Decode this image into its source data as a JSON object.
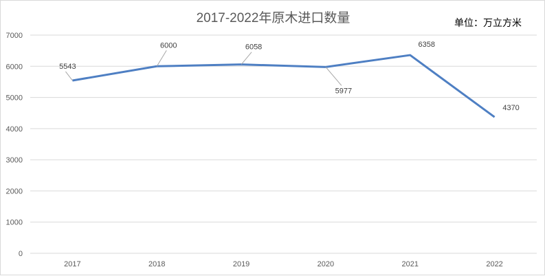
{
  "chart_data": {
    "type": "line",
    "title": "2017-2022年原木进口数量",
    "unit_label": "单位：万立方米",
    "categories": [
      "2017",
      "2018",
      "2019",
      "2020",
      "2021",
      "2022"
    ],
    "series": [
      {
        "values": [
          5543,
          6000,
          6058,
          5977,
          6358,
          4370
        ],
        "color": "#4e7fc3"
      }
    ],
    "ylim": [
      0,
      7000
    ],
    "yticks": [
      0,
      1000,
      2000,
      3000,
      4000,
      5000,
      6000,
      7000
    ],
    "grid": true,
    "legend": "none",
    "data_labels": true
  }
}
